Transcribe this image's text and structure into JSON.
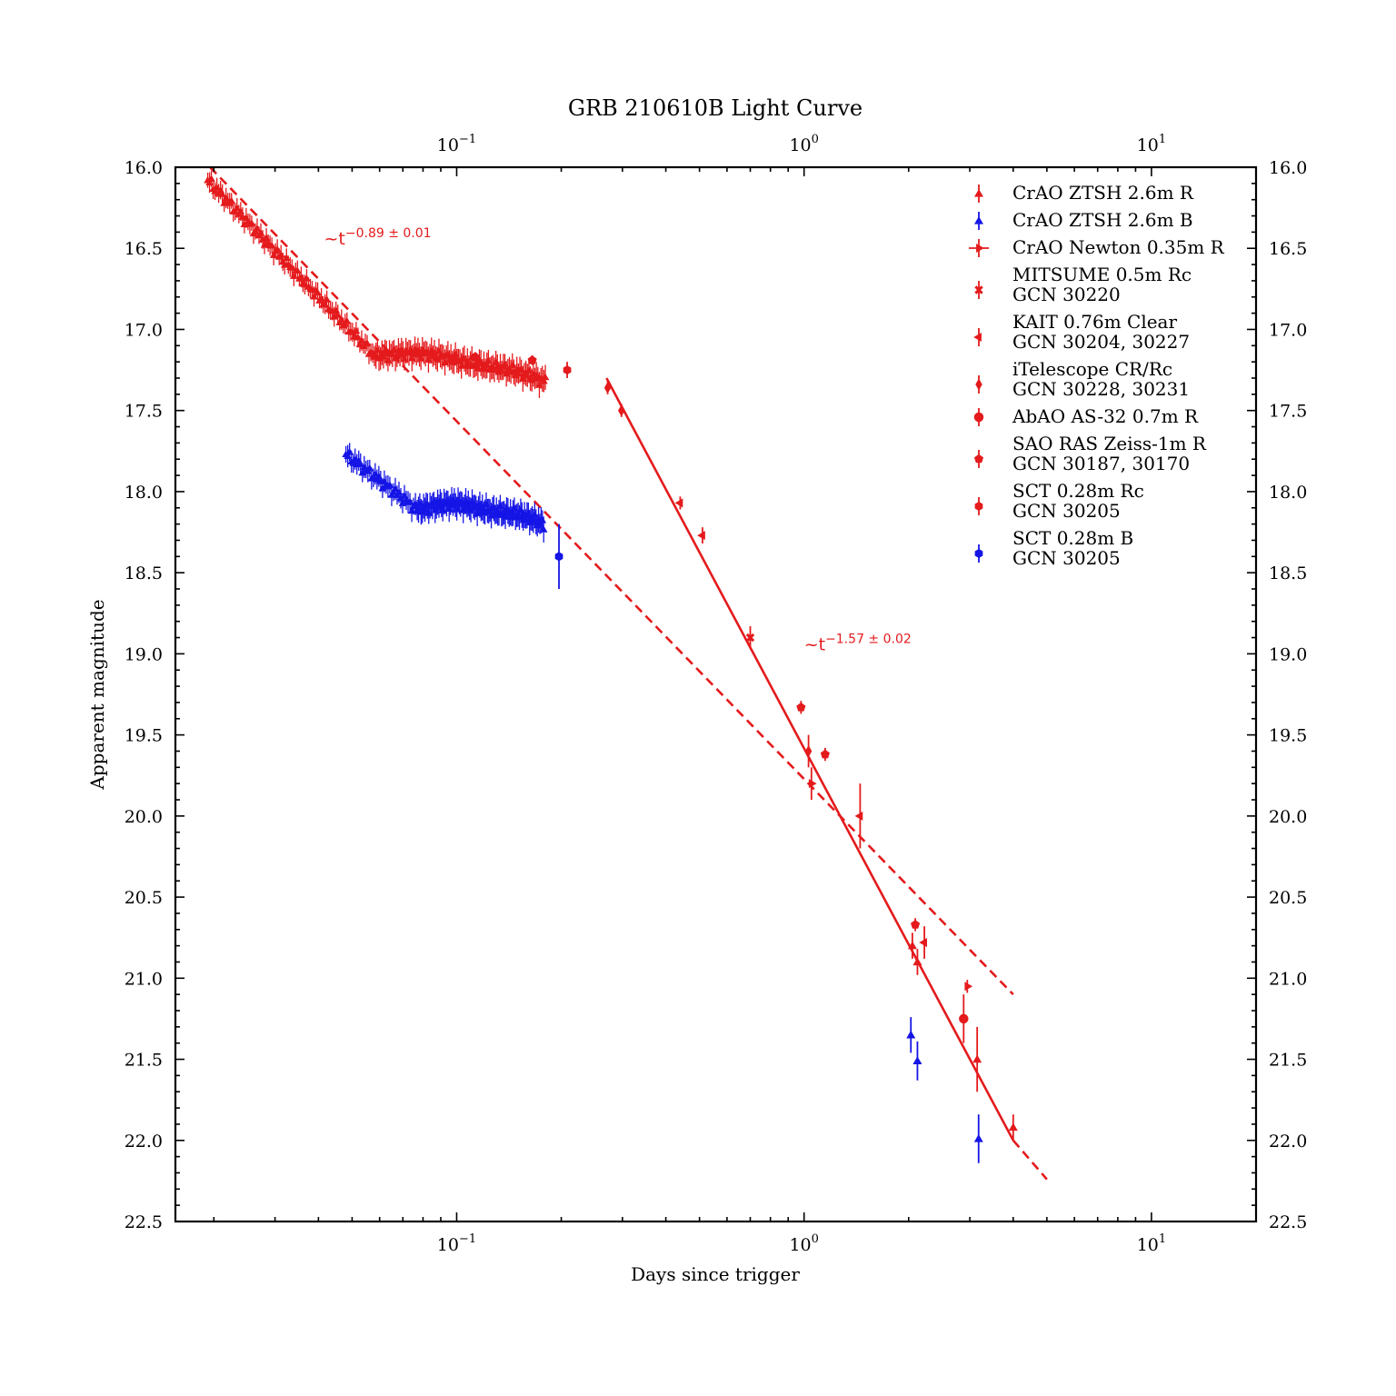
{
  "chart_data": {
    "type": "scatter",
    "title": "GRB 210610B Light Curve",
    "xlabel": "Days since trigger",
    "ylabel": "Apparent magnitude",
    "x_scale": "log",
    "xlim": [
      0.0155,
      20
    ],
    "ylim": [
      22.5,
      16.0
    ],
    "y_inverted": true,
    "grid": false,
    "legend_position": "top-right",
    "x_tick_labels": [
      {
        "value": 0.1,
        "base": "10",
        "exp": "−1"
      },
      {
        "value": 1,
        "base": "10",
        "exp": "0"
      },
      {
        "value": 10,
        "base": "10",
        "exp": "1"
      }
    ],
    "y_tick_labels": [
      "16.0",
      "16.5",
      "17.0",
      "17.5",
      "18.0",
      "18.5",
      "19.0",
      "19.5",
      "20.0",
      "20.5",
      "21.0",
      "21.5",
      "22.0",
      "22.5"
    ],
    "annotations": [
      {
        "prefix": "~t",
        "exponent": "−0.89 ± 0.01",
        "x": 0.0415,
        "y": 16.5,
        "color": "#e41a1c"
      },
      {
        "prefix": "~t",
        "exponent": "−1.57 ± 0.02",
        "x": 1.0,
        "y": 19.0,
        "color": "#e41a1c"
      }
    ],
    "fits": [
      {
        "slope": -0.89,
        "style": "dashed",
        "color": "#e41a1c",
        "points": [
          [
            0.0195,
            16.0
          ],
          [
            4.0,
            21.1
          ]
        ]
      },
      {
        "slope": -1.57,
        "style": "solid",
        "color": "#e41a1c",
        "points": [
          [
            0.27,
            17.3
          ],
          [
            4.0,
            22.0
          ]
        ]
      },
      {
        "slope": -1.57,
        "style": "dashed",
        "color": "#e41a1c",
        "points": [
          [
            4.0,
            22.0
          ],
          [
            5.0,
            22.24
          ]
        ]
      }
    ],
    "series": [
      {
        "name": "CrAO ZTSH 2.6m R",
        "marker": "triangle",
        "color": "#e41a1c",
        "segments": [
          {
            "x_start": 0.0192,
            "x_end": 0.058,
            "n": 92,
            "y_start": 16.08,
            "y_end": 17.16,
            "err": 0.055
          },
          {
            "x_start": 0.058,
            "x_end": 0.18,
            "n": 115,
            "y_start": 17.16,
            "y_end": 17.32,
            "err": 0.07,
            "wobble": 0.06
          }
        ],
        "points": [
          {
            "x": 2.05,
            "y": 20.8,
            "err": 0.08
          },
          {
            "x": 2.12,
            "y": 20.9,
            "err": 0.08
          },
          {
            "x": 3.15,
            "y": 21.5,
            "err": 0.2
          },
          {
            "x": 4.0,
            "y": 21.92,
            "err": 0.08
          }
        ]
      },
      {
        "name": "CrAO ZTSH 2.6m B",
        "marker": "triangle",
        "color": "#1515e6",
        "segments": [
          {
            "x_start": 0.048,
            "x_end": 0.077,
            "n": 40,
            "y_start": 17.77,
            "y_end": 18.11,
            "err": 0.06
          },
          {
            "x_start": 0.077,
            "x_end": 0.178,
            "n": 100,
            "y_start": 18.11,
            "y_end": 18.2,
            "err": 0.07,
            "wobble": 0.065
          }
        ],
        "points": [
          {
            "x": 2.03,
            "y": 21.35,
            "err": 0.11
          },
          {
            "x": 2.12,
            "y": 21.51,
            "err": 0.12
          },
          {
            "x": 3.18,
            "y": 21.99,
            "err": 0.15
          }
        ]
      },
      {
        "name": "CrAO Newton 0.35m R",
        "marker": "tri_right",
        "color": "#e41a1c",
        "points": [
          {
            "x": 1.05,
            "y": 19.8,
            "err": 0.1
          },
          {
            "x": 2.95,
            "y": 21.05,
            "err": 0.04
          }
        ]
      },
      {
        "name": "MITSUME 0.5m Rc\nGCN 30220",
        "marker": "x",
        "color": "#e41a1c",
        "points": [
          {
            "x": 0.7,
            "y": 18.9,
            "err": 0.07
          }
        ]
      },
      {
        "name": "KAIT 0.76m Clear\nGCN 30204, 30227",
        "marker": "tri_left",
        "color": "#e41a1c",
        "points": [
          {
            "x": 0.44,
            "y": 18.07,
            "err": 0.04
          },
          {
            "x": 0.51,
            "y": 18.27,
            "err": 0.05
          },
          {
            "x": 1.45,
            "y": 20.0,
            "err": 0.2
          },
          {
            "x": 2.22,
            "y": 20.78,
            "err": 0.1
          }
        ]
      },
      {
        "name": "iTelescope CR/Rc\nGCN 30228, 30231",
        "marker": "diamond",
        "color": "#e41a1c",
        "points": [
          {
            "x": 0.272,
            "y": 17.36,
            "err": 0.04
          },
          {
            "x": 0.298,
            "y": 17.5,
            "err": 0.04
          },
          {
            "x": 1.03,
            "y": 19.6,
            "err": 0.1
          }
        ]
      },
      {
        "name": "AbAO AS-32 0.7m R",
        "marker": "circle",
        "color": "#e41a1c",
        "points": [
          {
            "x": 2.88,
            "y": 21.25,
            "err": 0.15
          }
        ]
      },
      {
        "name": "SAO RAS Zeiss-1m R\nGCN 30187, 30170",
        "marker": "pentagon",
        "color": "#e41a1c",
        "points": [
          {
            "x": 0.98,
            "y": 19.33,
            "err": 0.04
          },
          {
            "x": 1.15,
            "y": 19.62,
            "err": 0.04
          },
          {
            "x": 2.09,
            "y": 20.67,
            "err": 0.04
          },
          {
            "x": 0.113,
            "y": 17.17,
            "err": 0.03
          },
          {
            "x": 0.165,
            "y": 17.19,
            "err": 0.03
          },
          {
            "x": 0.099,
            "y": 17.19,
            "err": 0.03
          }
        ]
      },
      {
        "name": "SCT 0.28m Rc\nGCN 30205",
        "marker": "hexagon",
        "color": "#e41a1c",
        "points": [
          {
            "x": 0.208,
            "y": 17.25,
            "err": 0.05
          }
        ]
      },
      {
        "name": "SCT 0.28m B\nGCN 30205",
        "marker": "hexagon",
        "color": "#1515e6",
        "points": [
          {
            "x": 0.197,
            "y": 18.4,
            "err": 0.2
          }
        ]
      }
    ]
  }
}
